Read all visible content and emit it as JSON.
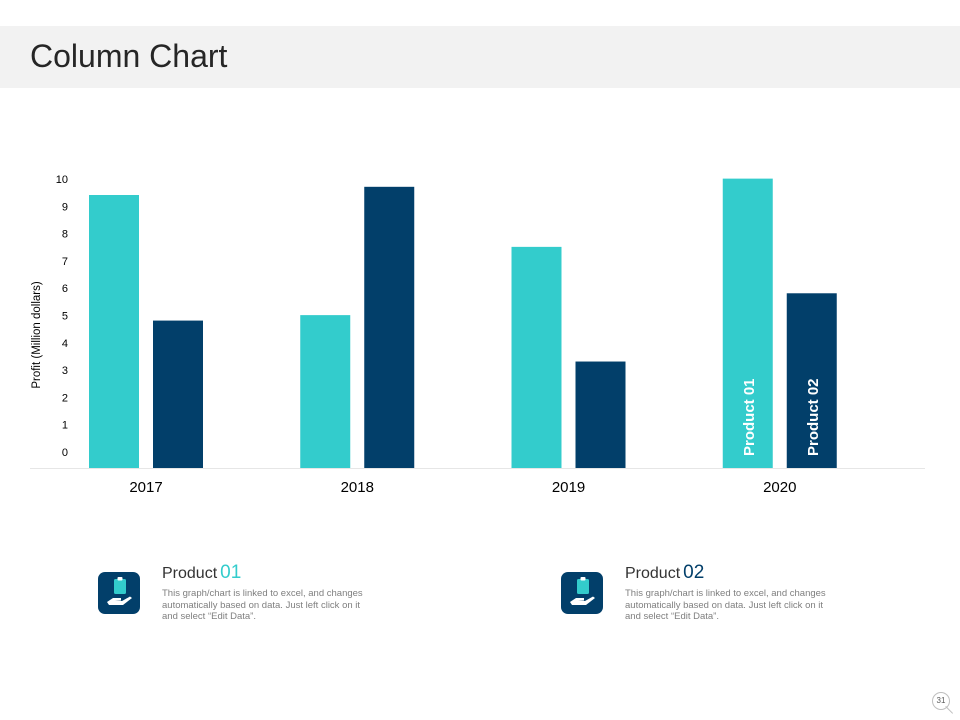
{
  "slide": {
    "title": "Column Chart",
    "page_number": "31"
  },
  "colors": {
    "product_01": "#33cccc",
    "product_02": "#023f6a",
    "axis_text": "#000000",
    "baseline": "#e6e6e6"
  },
  "chart_data": {
    "type": "bar",
    "title": "",
    "xlabel": "",
    "ylabel": "Profit  (Million dollars)",
    "categories": [
      "2017",
      "2018",
      "2019",
      "2020"
    ],
    "series": [
      {
        "name": "Product 01",
        "values": [
          10.0,
          5.6,
          8.1,
          10.6
        ]
      },
      {
        "name": "Product 02",
        "values": [
          5.4,
          10.3,
          3.9,
          6.4
        ]
      }
    ],
    "y_ticks": [
      0,
      1,
      2,
      3,
      4,
      5,
      6,
      7,
      8,
      9,
      10
    ],
    "ylim": [
      0,
      10.6
    ],
    "grid": false,
    "legend_placement": "inside-last-bars"
  },
  "legend": [
    {
      "title": "Product",
      "number": "01",
      "number_color": "#33cccc",
      "description": "This graph/chart is linked to excel, and changes automatically based on data. Just left click on it and select “Edit Data”.",
      "icon": "hand-holding-clipboard-icon"
    },
    {
      "title": "Product",
      "number": "02",
      "number_color": "#023f6a",
      "description": "This graph/chart is linked to excel, and changes automatically based on data. Just left click on it and select “Edit Data”.",
      "icon": "hand-holding-clipboard-icon"
    }
  ]
}
